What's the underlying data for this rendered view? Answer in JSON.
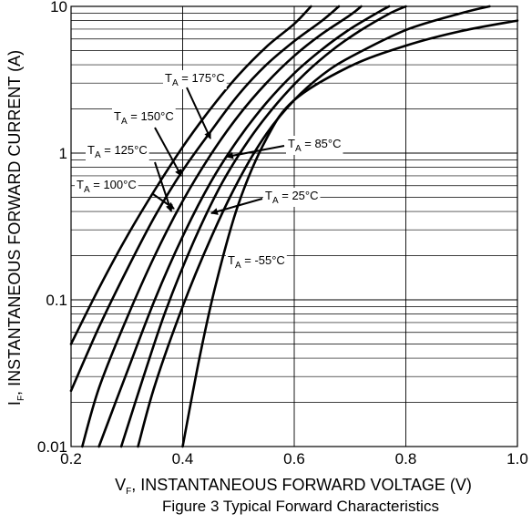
{
  "chart_data": {
    "type": "line",
    "title": "Figure 3 Typical Forward Characteristics",
    "xlabel": "V_F, INSTANTANEOUS FORWARD VOLTAGE (V)",
    "xlabel_prefix": "V",
    "xlabel_sub": "F",
    "xlabel_rest": ", INSTANTANEOUS FORWARD VOLTAGE (V)",
    "ylabel": "I_F, INSTANTANEOUS FORWARD CURRENT (A)",
    "ylabel_prefix": "I",
    "ylabel_sub": "F",
    "ylabel_rest": ", INSTANTANEOUS FORWARD CURRENT (A)",
    "xlim": [
      0.2,
      1.0
    ],
    "ylim": [
      0.01,
      10
    ],
    "y_scale": "log",
    "grid": true,
    "x_ticks": [
      "0.2",
      "0.4",
      "0.6",
      "0.8",
      "1.0"
    ],
    "y_ticks": [
      "0.01",
      "0.1",
      "1",
      "10"
    ],
    "series": [
      {
        "name": "T_A = 175°C",
        "label_pre": "T",
        "label_sub": "A",
        "label_post": " = 175°C",
        "points": [
          [
            0.2,
            0.05
          ],
          [
            0.25,
            0.12
          ],
          [
            0.3,
            0.27
          ],
          [
            0.35,
            0.56
          ],
          [
            0.4,
            1.1
          ],
          [
            0.45,
            2.0
          ],
          [
            0.5,
            3.4
          ],
          [
            0.55,
            5.3
          ],
          [
            0.6,
            7.6
          ],
          [
            0.63,
            10
          ]
        ]
      },
      {
        "name": "T_A = 150°C",
        "label_pre": "T",
        "label_sub": "A",
        "label_post": " = 150°C",
        "points": [
          [
            0.2,
            0.024
          ],
          [
            0.25,
            0.065
          ],
          [
            0.3,
            0.16
          ],
          [
            0.35,
            0.37
          ],
          [
            0.4,
            0.76
          ],
          [
            0.45,
            1.4
          ],
          [
            0.5,
            2.5
          ],
          [
            0.55,
            4.0
          ],
          [
            0.6,
            5.8
          ],
          [
            0.65,
            8.0
          ],
          [
            0.68,
            10
          ]
        ]
      },
      {
        "name": "T_A = 125°C",
        "label_pre": "T",
        "label_sub": "A",
        "label_post": " = 125°C",
        "points": [
          [
            0.22,
            0.01
          ],
          [
            0.25,
            0.025
          ],
          [
            0.3,
            0.075
          ],
          [
            0.35,
            0.2
          ],
          [
            0.4,
            0.47
          ],
          [
            0.45,
            0.97
          ],
          [
            0.5,
            1.8
          ],
          [
            0.55,
            3.0
          ],
          [
            0.6,
            4.6
          ],
          [
            0.65,
            6.5
          ],
          [
            0.7,
            8.7
          ],
          [
            0.72,
            10
          ]
        ]
      },
      {
        "name": "T_A = 100°C",
        "label_pre": "T",
        "label_sub": "A",
        "label_post": " = 100°C",
        "points": [
          [
            0.25,
            0.01
          ],
          [
            0.3,
            0.032
          ],
          [
            0.35,
            0.1
          ],
          [
            0.4,
            0.27
          ],
          [
            0.45,
            0.63
          ],
          [
            0.5,
            1.25
          ],
          [
            0.55,
            2.2
          ],
          [
            0.6,
            3.5
          ],
          [
            0.65,
            5.1
          ],
          [
            0.7,
            7.0
          ],
          [
            0.75,
            9.1
          ],
          [
            0.77,
            10
          ]
        ]
      },
      {
        "name": "T_A = 85°C",
        "label_pre": "T",
        "label_sub": "A",
        "label_post": " = 85°C",
        "points": [
          [
            0.29,
            0.01
          ],
          [
            0.33,
            0.03
          ],
          [
            0.37,
            0.085
          ],
          [
            0.42,
            0.25
          ],
          [
            0.47,
            0.62
          ],
          [
            0.52,
            1.25
          ],
          [
            0.57,
            2.2
          ],
          [
            0.62,
            3.5
          ],
          [
            0.67,
            5.1
          ],
          [
            0.72,
            6.9
          ],
          [
            0.77,
            8.9
          ],
          [
            0.8,
            10
          ]
        ]
      },
      {
        "name": "T_A = 25°C",
        "label_pre": "T",
        "label_sub": "A",
        "label_post": " = 25°C",
        "points": [
          [
            0.32,
            0.01
          ],
          [
            0.35,
            0.026
          ],
          [
            0.4,
            0.09
          ],
          [
            0.45,
            0.26
          ],
          [
            0.5,
            0.65
          ],
          [
            0.55,
            1.35
          ],
          [
            0.6,
            2.3
          ],
          [
            0.65,
            3.4
          ],
          [
            0.7,
            4.5
          ],
          [
            0.8,
            6.9
          ],
          [
            0.9,
            9.0
          ],
          [
            0.95,
            10
          ]
        ]
      },
      {
        "name": "T_A = -55°C",
        "label_pre": "T",
        "label_sub": "A",
        "label_post": " = -55°C",
        "points": [
          [
            0.4,
            0.01
          ],
          [
            0.43,
            0.04
          ],
          [
            0.46,
            0.13
          ],
          [
            0.5,
            0.45
          ],
          [
            0.55,
            1.25
          ],
          [
            0.6,
            2.3
          ],
          [
            0.7,
            3.9
          ],
          [
            0.8,
            5.4
          ],
          [
            0.9,
            6.8
          ],
          [
            1.0,
            8.0
          ]
        ]
      }
    ]
  }
}
